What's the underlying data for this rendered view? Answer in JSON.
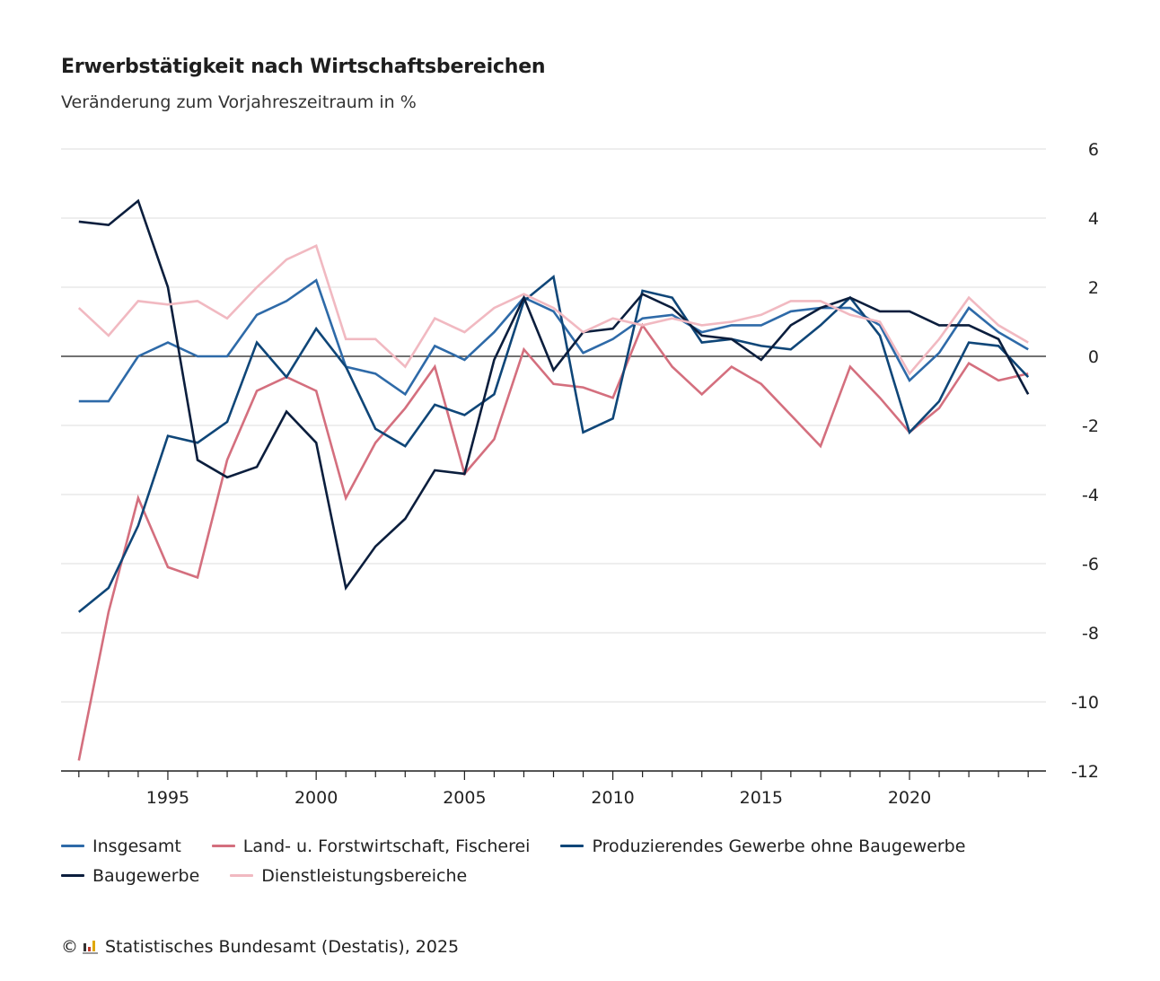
{
  "header": {
    "title": "Erwerbstätigkeit nach Wirtschaftsbereichen",
    "subtitle": "Veränderung zum Vorjahreszeitraum in %"
  },
  "footer": {
    "copyright_symbol": "©",
    "source": "Statistisches Bundesamt (Destatis), 2025",
    "logo_icon": "destatis-logo-icon"
  },
  "chart_data": {
    "type": "line",
    "title": "Erwerbstätigkeit nach Wirtschaftsbereichen",
    "subtitle": "Veränderung zum Vorjahreszeitraum in %",
    "xlabel": "",
    "ylabel": "",
    "x": [
      1992,
      1993,
      1994,
      1995,
      1996,
      1997,
      1998,
      1999,
      2000,
      2001,
      2002,
      2003,
      2004,
      2005,
      2006,
      2007,
      2008,
      2009,
      2010,
      2011,
      2012,
      2013,
      2014,
      2015,
      2016,
      2017,
      2018,
      2019,
      2020,
      2021,
      2022,
      2023,
      2024
    ],
    "xlim": [
      1991.4,
      2024.6
    ],
    "ylim": [
      -12,
      6
    ],
    "xticks": [
      1995,
      2000,
      2005,
      2010,
      2015,
      2020
    ],
    "yticks": [
      6,
      4,
      2,
      0,
      -2,
      -4,
      -6,
      -8,
      -10,
      -12
    ],
    "y_axis_position": "right",
    "grid": true,
    "zero_line": true,
    "legend_position": "bottom",
    "series": [
      {
        "name": "Insgesamt",
        "color": "#2e6aa8",
        "values": [
          -1.3,
          -1.3,
          0.0,
          0.4,
          0.0,
          0.0,
          1.2,
          1.6,
          2.2,
          -0.3,
          -0.5,
          -1.1,
          0.3,
          -0.1,
          0.7,
          1.7,
          1.3,
          0.1,
          0.5,
          1.1,
          1.2,
          0.7,
          0.9,
          0.9,
          1.3,
          1.4,
          1.4,
          0.9,
          -0.7,
          0.1,
          1.4,
          0.7,
          0.2
        ]
      },
      {
        "name": "Land- u. Forstwirtschaft, Fischerei",
        "color": "#d46f7e",
        "values": [
          -11.7,
          -7.4,
          -4.1,
          -6.1,
          -6.4,
          -3.0,
          -1.0,
          -0.6,
          -1.0,
          -4.1,
          -2.5,
          -1.5,
          -0.3,
          -3.4,
          -2.4,
          0.2,
          -0.8,
          -0.9,
          -1.2,
          0.9,
          -0.3,
          -1.1,
          -0.3,
          -0.8,
          -1.7,
          -2.6,
          -0.3,
          -1.2,
          -2.2,
          -1.5,
          -0.2,
          -0.7,
          -0.5
        ]
      },
      {
        "name": "Produzierendes Gewerbe ohne Baugewerbe",
        "color": "#0f4678",
        "values": [
          -7.4,
          -6.7,
          -4.9,
          -2.3,
          -2.5,
          -1.9,
          0.4,
          -0.6,
          0.8,
          -0.3,
          -2.1,
          -2.6,
          -1.4,
          -1.7,
          -1.1,
          1.6,
          2.3,
          -2.2,
          -1.8,
          1.9,
          1.7,
          0.4,
          0.5,
          0.3,
          0.2,
          0.9,
          1.7,
          0.6,
          -2.2,
          -1.3,
          0.4,
          0.3,
          -0.6
        ]
      },
      {
        "name": "Baugewerbe",
        "color": "#0b1e3d",
        "values": [
          3.9,
          3.8,
          4.5,
          2.0,
          -3.0,
          -3.5,
          -3.2,
          -1.6,
          -2.5,
          -6.7,
          -5.5,
          -4.7,
          -3.3,
          -3.4,
          -0.1,
          1.7,
          -0.4,
          0.7,
          0.8,
          1.8,
          1.4,
          0.6,
          0.5,
          -0.1,
          0.9,
          1.4,
          1.7,
          1.3,
          1.3,
          0.9,
          0.9,
          0.5,
          -1.1
        ]
      },
      {
        "name": "Dienstleistungsbereiche",
        "color": "#f1b9c1",
        "values": [
          1.4,
          0.6,
          1.6,
          1.5,
          1.6,
          1.1,
          2.0,
          2.8,
          3.2,
          0.5,
          0.5,
          -0.3,
          1.1,
          0.7,
          1.4,
          1.8,
          1.4,
          0.7,
          1.1,
          0.9,
          1.1,
          0.9,
          1.0,
          1.2,
          1.6,
          1.6,
          1.2,
          1.0,
          -0.5,
          0.5,
          1.7,
          0.9,
          0.4
        ]
      }
    ]
  }
}
